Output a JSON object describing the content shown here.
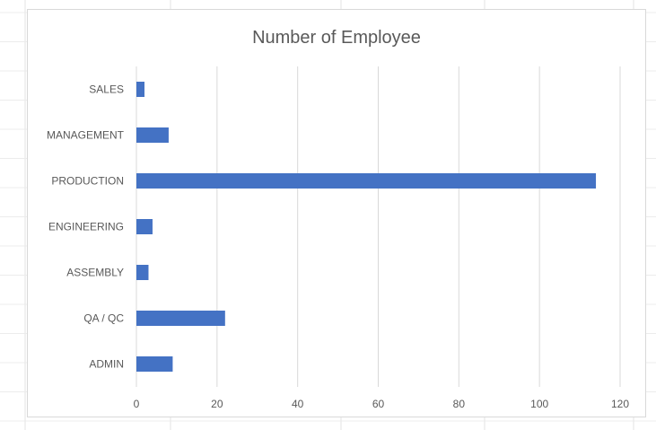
{
  "chart_data": {
    "type": "bar",
    "orientation": "horizontal",
    "title": "Number of Employee",
    "xlabel": "",
    "ylabel": "",
    "categories": [
      "SALES",
      "MANAGEMENT",
      "PRODUCTION",
      "ENGINEERING",
      "ASSEMBLY",
      "QA / QC",
      "ADMIN"
    ],
    "values": [
      2,
      8,
      114,
      4,
      3,
      22,
      9
    ],
    "xlim": [
      0,
      120
    ],
    "xticks": [
      0,
      20,
      40,
      60,
      80,
      100,
      120
    ],
    "grid": true,
    "legend": "none",
    "bar_color": "#4472c4",
    "grid_color": "#d9d9d9"
  }
}
